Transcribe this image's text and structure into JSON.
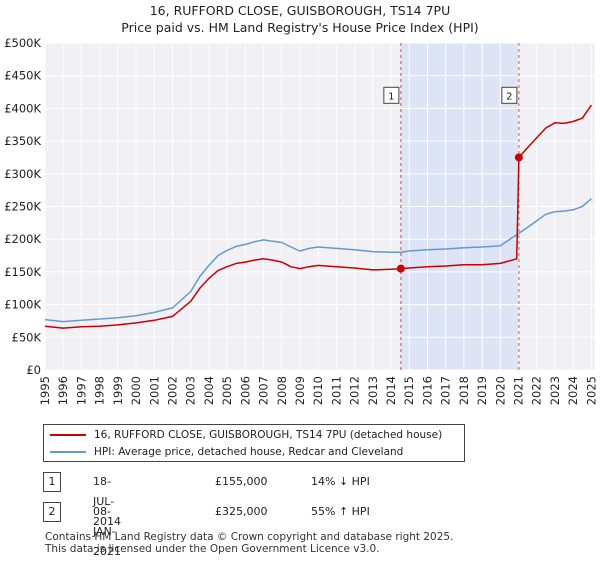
{
  "title": {
    "line1": "16, RUFFORD CLOSE, GUISBOROUGH, TS14 7PU",
    "line2": "Price paid vs. HM Land Registry's House Price Index (HPI)"
  },
  "chart_data": {
    "type": "line",
    "title": "16, RUFFORD CLOSE, GUISBOROUGH, TS14 7PU — Price paid vs. HM Land Registry's House Price Index (HPI)",
    "xlim": [
      1995,
      2025.2
    ],
    "ylim": [
      0,
      500000
    ],
    "x_ticks": [
      "1995",
      "1996",
      "1997",
      "1998",
      "1999",
      "2000",
      "2001",
      "2002",
      "2003",
      "2004",
      "2005",
      "2006",
      "2007",
      "2008",
      "2009",
      "2010",
      "2011",
      "2012",
      "2013",
      "2014",
      "2015",
      "2016",
      "2017",
      "2018",
      "2019",
      "2020",
      "2021",
      "2022",
      "2023",
      "2024",
      "2025"
    ],
    "y_ticks": [
      {
        "value": 0,
        "label": "£0"
      },
      {
        "value": 50000,
        "label": "£50K"
      },
      {
        "value": 100000,
        "label": "£100K"
      },
      {
        "value": 150000,
        "label": "£150K"
      },
      {
        "value": 200000,
        "label": "£200K"
      },
      {
        "value": 250000,
        "label": "£250K"
      },
      {
        "value": 300000,
        "label": "£300K"
      },
      {
        "value": 350000,
        "label": "£350K"
      },
      {
        "value": 400000,
        "label": "£400K"
      },
      {
        "value": 450000,
        "label": "£450K"
      },
      {
        "value": 500000,
        "label": "£500K"
      }
    ],
    "grid": true,
    "shaded_region": [
      2014.54,
      2021.02
    ],
    "series": [
      {
        "name": "16, RUFFORD CLOSE, GUISBOROUGH, TS14 7PU (detached house)",
        "color": "#cc0000",
        "points": [
          [
            1995.0,
            67000
          ],
          [
            1996.0,
            64000
          ],
          [
            1997.0,
            66000
          ],
          [
            1998.0,
            67000
          ],
          [
            1999.0,
            69000
          ],
          [
            2000.0,
            72000
          ],
          [
            2001.0,
            76000
          ],
          [
            2002.0,
            82000
          ],
          [
            2003.0,
            105000
          ],
          [
            2003.5,
            125000
          ],
          [
            2004.0,
            140000
          ],
          [
            2004.5,
            152000
          ],
          [
            2005.0,
            158000
          ],
          [
            2005.5,
            163000
          ],
          [
            2006.0,
            165000
          ],
          [
            2006.5,
            168000
          ],
          [
            2007.0,
            170000
          ],
          [
            2007.5,
            168000
          ],
          [
            2008.0,
            165000
          ],
          [
            2008.5,
            158000
          ],
          [
            2009.0,
            155000
          ],
          [
            2009.5,
            158000
          ],
          [
            2010.0,
            160000
          ],
          [
            2011.0,
            158000
          ],
          [
            2012.0,
            156000
          ],
          [
            2013.0,
            153000
          ],
          [
            2014.0,
            154000
          ],
          [
            2014.54,
            155000
          ],
          [
            2015.0,
            156000
          ],
          [
            2016.0,
            158000
          ],
          [
            2017.0,
            159000
          ],
          [
            2018.0,
            161000
          ],
          [
            2019.0,
            161000
          ],
          [
            2020.0,
            163000
          ],
          [
            2020.9,
            170000
          ],
          [
            2021.02,
            325000
          ],
          [
            2021.5,
            340000
          ],
          [
            2022.0,
            355000
          ],
          [
            2022.5,
            370000
          ],
          [
            2023.0,
            378000
          ],
          [
            2023.5,
            377000
          ],
          [
            2024.0,
            380000
          ],
          [
            2024.5,
            385000
          ],
          [
            2025.0,
            405000
          ]
        ]
      },
      {
        "name": "HPI: Average price, detached house, Redcar and Cleveland",
        "color": "#6699cc",
        "points": [
          [
            1995.0,
            77000
          ],
          [
            1996.0,
            74000
          ],
          [
            1997.0,
            76000
          ],
          [
            1998.0,
            78000
          ],
          [
            1999.0,
            80000
          ],
          [
            2000.0,
            83000
          ],
          [
            2001.0,
            88000
          ],
          [
            2002.0,
            95000
          ],
          [
            2003.0,
            120000
          ],
          [
            2003.5,
            143000
          ],
          [
            2004.0,
            160000
          ],
          [
            2004.5,
            175000
          ],
          [
            2005.0,
            183000
          ],
          [
            2005.5,
            189000
          ],
          [
            2006.0,
            192000
          ],
          [
            2006.5,
            196000
          ],
          [
            2007.0,
            199000
          ],
          [
            2007.5,
            197000
          ],
          [
            2008.0,
            195000
          ],
          [
            2008.5,
            188000
          ],
          [
            2009.0,
            182000
          ],
          [
            2009.5,
            186000
          ],
          [
            2010.0,
            188000
          ],
          [
            2011.0,
            186000
          ],
          [
            2012.0,
            184000
          ],
          [
            2013.0,
            181000
          ],
          [
            2014.0,
            180000
          ],
          [
            2014.54,
            180000
          ],
          [
            2015.0,
            182000
          ],
          [
            2016.0,
            184000
          ],
          [
            2017.0,
            185000
          ],
          [
            2018.0,
            187000
          ],
          [
            2019.0,
            188000
          ],
          [
            2020.0,
            190000
          ],
          [
            2021.02,
            209000
          ],
          [
            2021.5,
            218000
          ],
          [
            2022.0,
            228000
          ],
          [
            2022.5,
            238000
          ],
          [
            2023.0,
            242000
          ],
          [
            2023.5,
            243000
          ],
          [
            2024.0,
            245000
          ],
          [
            2024.5,
            250000
          ],
          [
            2025.0,
            262000
          ]
        ]
      }
    ],
    "sales": [
      {
        "label": "1",
        "x": 2014.54,
        "value": 155000
      },
      {
        "label": "2",
        "x": 2021.02,
        "value": 325000
      }
    ],
    "marker_label_value": 420000
  },
  "legend": {
    "items": [
      {
        "label": "16, RUFFORD CLOSE, GUISBOROUGH, TS14 7PU (detached house)",
        "color": "#cc0000"
      },
      {
        "label": "HPI: Average price, detached house, Redcar and Cleveland",
        "color": "#6699cc"
      }
    ]
  },
  "transactions": [
    {
      "num": "1",
      "date": "18-JUL-2014",
      "price": "£155,000",
      "hpi": "14% ↓ HPI"
    },
    {
      "num": "2",
      "date": "08-JAN-2021",
      "price": "£325,000",
      "hpi": "55% ↑ HPI"
    }
  ],
  "footer": {
    "line1": "Contains HM Land Registry data © Crown copyright and database right 2025.",
    "line2": "This data is licensed under the Open Government Licence v3.0."
  }
}
